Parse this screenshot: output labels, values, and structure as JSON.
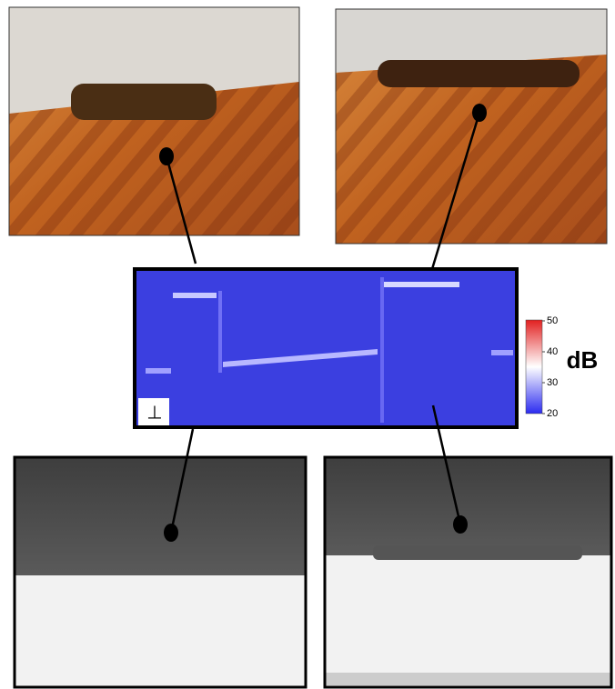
{
  "panel_marker": "⊥",
  "colorbar": {
    "label": "dB",
    "lim": [
      20,
      50
    ],
    "ticks": [
      20,
      30,
      40,
      50
    ]
  }
}
